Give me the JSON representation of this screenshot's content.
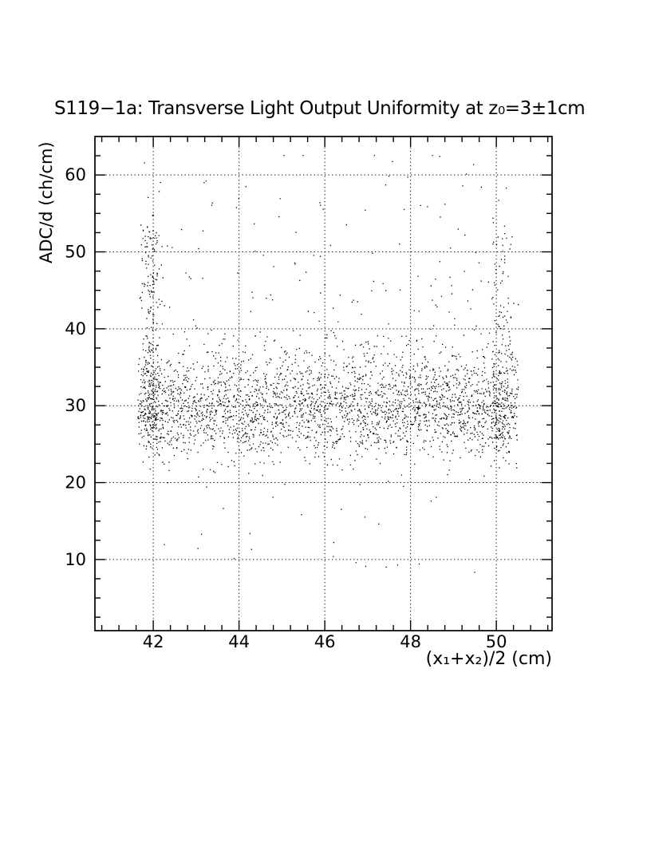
{
  "page": {
    "background_color": "#ffffff",
    "ink_color": "#000000"
  },
  "chart_data": {
    "type": "scatter",
    "title": "S119−1a: Transverse Light Output Uniformity at z₀=3±1cm",
    "xlabel": "(x₁+x₂)/2 (cm)",
    "ylabel": "ADC/d (ch/cm)",
    "color": "#000000",
    "background": "#ffffff",
    "xlim": [
      40.64,
      51.3
    ],
    "ylim": [
      0.75,
      65
    ],
    "xticks": [
      42,
      44,
      46,
      48,
      50
    ],
    "yticks": [
      10,
      20,
      30,
      40,
      50,
      60
    ],
    "x_minor_step": 0.4,
    "y_minor_step": 2.5,
    "grid": "dotted lines at major ticks on both axes",
    "ticks": "inward major and minor ticks on all four sides",
    "legend": "none",
    "marker": "1px black dot",
    "data_summary": {
      "n_points_approx": 3400,
      "x_data_range_cm": [
        41.6,
        50.5
      ],
      "y_band_center_ch_per_cm": 30,
      "y_band_1sigma": [
        26.5,
        33.5
      ],
      "y_full_range": [
        7,
        62
      ],
      "features": [
        "dense horizontal band of points centered near ADC/d = 30 across the full x range",
        "sparse upward tail of points reaching ~60 ch/cm",
        "enhanced vertical column of points near x = 42 extending to high ADC/d values",
        "smaller enhanced column near x = 50 up to ~52 ch/cm",
        "a few low outliers between ~8 and ~20 ch/cm"
      ]
    },
    "generator": {
      "seed": 1191,
      "n_points": 3400,
      "y_clip": [
        7,
        62.6
      ],
      "clusters": [
        {
          "name": "main-band",
          "weight": 0.795,
          "x": {
            "dist": "uniform",
            "min": 41.63,
            "max": 50.5
          },
          "y": {
            "dist": "lognormal",
            "log_mean": 3.395,
            "log_sigma": 0.115
          }
        },
        {
          "name": "upper-tail",
          "weight": 0.075,
          "x": {
            "dist": "uniform",
            "min": 41.7,
            "max": 50.45
          },
          "y": {
            "dist": "powtail",
            "base": 32,
            "span": 30,
            "power": 2.0,
            "jitter": 2.0
          }
        },
        {
          "name": "left-edge-column",
          "weight": 0.075,
          "x": {
            "dist": "gauss",
            "mu": 41.93,
            "sigma": 0.13,
            "min": 41.63,
            "max": 42.7
          },
          "y": {
            "dist": "powtail",
            "base": 27.5,
            "span": 27,
            "power": 1.55,
            "jitter": 1.5
          }
        },
        {
          "name": "right-edge-column",
          "weight": 0.044,
          "x": {
            "dist": "gauss",
            "mu": 50.12,
            "sigma": 0.16,
            "min": 49.55,
            "max": 50.5
          },
          "y": {
            "dist": "powtail",
            "base": 25.5,
            "span": 27,
            "power": 1.8,
            "jitter": 1.5
          }
        },
        {
          "name": "low-outliers",
          "weight": 0.011,
          "x": {
            "dist": "uniform",
            "min": 42.0,
            "max": 50.3
          },
          "y": {
            "dist": "powlow",
            "top": 22.5,
            "span": 14.5,
            "power": 1.7
          }
        }
      ]
    }
  }
}
